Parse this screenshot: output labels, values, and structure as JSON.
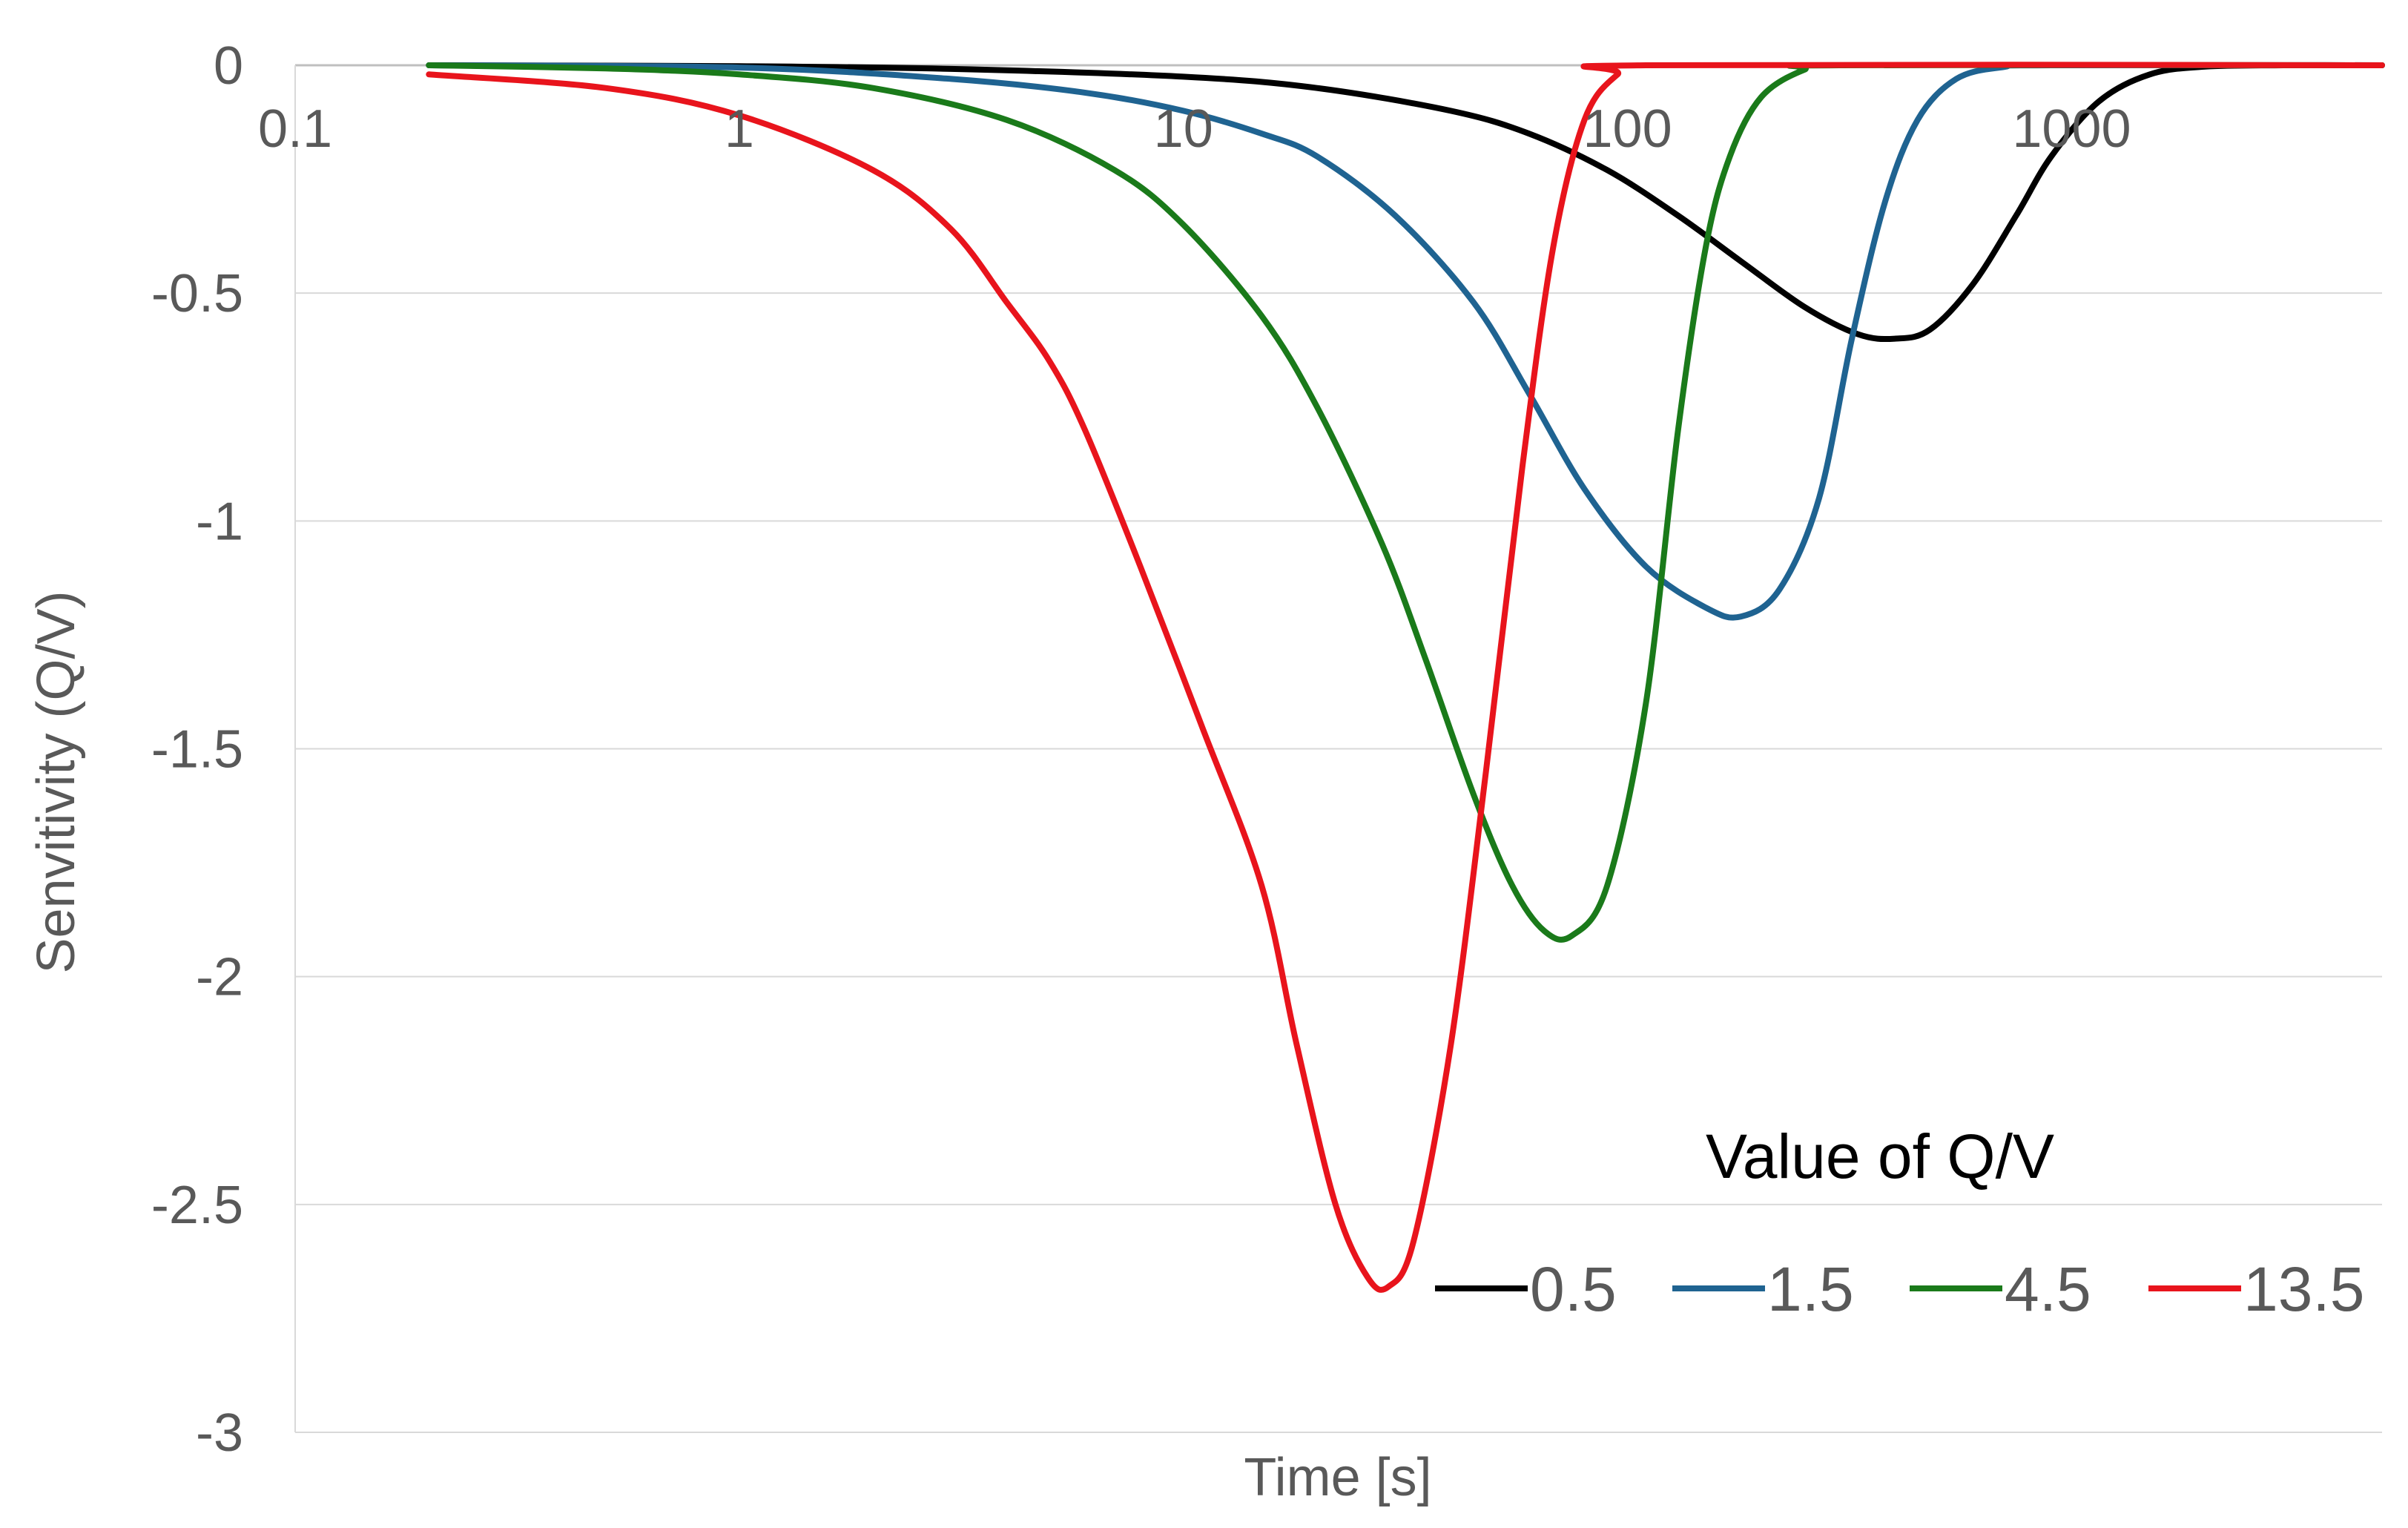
{
  "chart_data": {
    "type": "line",
    "title": "",
    "xlabel": "Time [s]",
    "ylabel": "Senvitivity (Q/V)",
    "xscale": "log",
    "xlim": [
      0.1,
      5000
    ],
    "ylim": [
      -3,
      0
    ],
    "grid": true,
    "x_ticks": [
      0.1,
      1,
      10,
      100,
      1000
    ],
    "x_tick_labels": [
      "0.1",
      "1",
      "10",
      "100",
      "1000"
    ],
    "y_ticks": [
      0,
      -0.5,
      -1,
      -1.5,
      -2,
      -2.5,
      -3
    ],
    "y_tick_labels": [
      "0",
      "-0.5",
      "-1",
      "-1.5",
      "-2",
      "-2.5",
      "-3"
    ],
    "legend": {
      "title": "Value of Q/V",
      "position": "bottom-right"
    },
    "series": [
      {
        "name": "0.5",
        "color": "#000000",
        "points": [
          [
            0.2,
            0
          ],
          [
            1,
            -0.002
          ],
          [
            3,
            -0.008
          ],
          [
            10,
            -0.025
          ],
          [
            20,
            -0.05
          ],
          [
            40,
            -0.1
          ],
          [
            60,
            -0.15
          ],
          [
            90,
            -0.23
          ],
          [
            130,
            -0.33
          ],
          [
            180,
            -0.43
          ],
          [
            250,
            -0.53
          ],
          [
            330,
            -0.59
          ],
          [
            400,
            -0.6
          ],
          [
            480,
            -0.58
          ],
          [
            600,
            -0.48
          ],
          [
            750,
            -0.33
          ],
          [
            900,
            -0.2
          ],
          [
            1150,
            -0.08
          ],
          [
            1500,
            -0.02
          ],
          [
            2000,
            -0.003
          ],
          [
            3000,
            0
          ],
          [
            5000,
            0
          ]
        ]
      },
      {
        "name": "1.5",
        "color": "#1f6391",
        "points": [
          [
            0.2,
            0
          ],
          [
            1,
            -0.005
          ],
          [
            3,
            -0.03
          ],
          [
            6,
            -0.06
          ],
          [
            10,
            -0.1
          ],
          [
            15,
            -0.15
          ],
          [
            20,
            -0.2
          ],
          [
            30,
            -0.33
          ],
          [
            45,
            -0.52
          ],
          [
            60,
            -0.72
          ],
          [
            80,
            -0.93
          ],
          [
            110,
            -1.1
          ],
          [
            150,
            -1.19
          ],
          [
            180,
            -1.21
          ],
          [
            220,
            -1.15
          ],
          [
            270,
            -0.95
          ],
          [
            320,
            -0.6
          ],
          [
            380,
            -0.3
          ],
          [
            450,
            -0.12
          ],
          [
            550,
            -0.03
          ],
          [
            700,
            -0.004
          ],
          [
            900,
            0
          ],
          [
            5000,
            0
          ]
        ]
      },
      {
        "name": "4.5",
        "color": "#1a7a1a",
        "points": [
          [
            0.2,
            0
          ],
          [
            0.5,
            -0.007
          ],
          [
            1,
            -0.02
          ],
          [
            2,
            -0.05
          ],
          [
            4,
            -0.12
          ],
          [
            7,
            -0.23
          ],
          [
            10,
            -0.35
          ],
          [
            15,
            -0.55
          ],
          [
            20,
            -0.75
          ],
          [
            28,
            -1.05
          ],
          [
            35,
            -1.3
          ],
          [
            45,
            -1.6
          ],
          [
            55,
            -1.8
          ],
          [
            65,
            -1.9
          ],
          [
            75,
            -1.91
          ],
          [
            90,
            -1.8
          ],
          [
            110,
            -1.4
          ],
          [
            130,
            -0.8
          ],
          [
            150,
            -0.4
          ],
          [
            170,
            -0.2
          ],
          [
            200,
            -0.07
          ],
          [
            250,
            -0.01
          ],
          [
            300,
            0
          ],
          [
            5000,
            0
          ]
        ]
      },
      {
        "name": "13.5",
        "color": "#e8141c",
        "points": [
          [
            0.2,
            -0.02
          ],
          [
            0.5,
            -0.05
          ],
          [
            1,
            -0.11
          ],
          [
            2,
            -0.23
          ],
          [
            3,
            -0.36
          ],
          [
            4,
            -0.52
          ],
          [
            5,
            -0.65
          ],
          [
            6,
            -0.8
          ],
          [
            8,
            -1.1
          ],
          [
            11,
            -1.45
          ],
          [
            15,
            -1.8
          ],
          [
            18,
            -2.15
          ],
          [
            22,
            -2.5
          ],
          [
            26,
            -2.66
          ],
          [
            29,
            -2.68
          ],
          [
            33,
            -2.58
          ],
          [
            40,
            -2.15
          ],
          [
            48,
            -1.55
          ],
          [
            58,
            -0.88
          ],
          [
            68,
            -0.4
          ],
          [
            80,
            -0.12
          ],
          [
            95,
            -0.02
          ],
          [
            110,
            0
          ],
          [
            5000,
            0
          ]
        ]
      }
    ]
  }
}
